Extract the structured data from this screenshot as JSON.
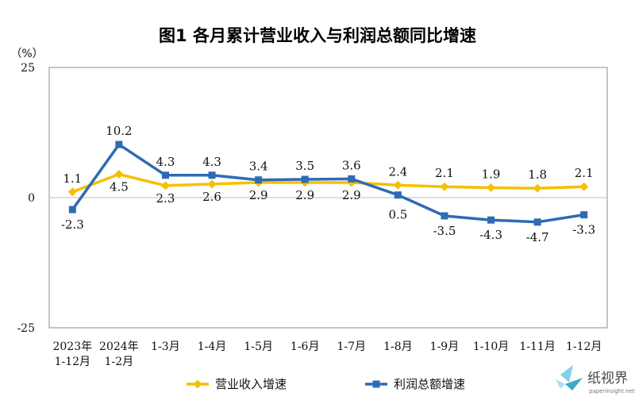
{
  "chart_data": {
    "type": "line",
    "title": "图1  各月累计营业收入与利润总额同比增速",
    "ylabel": "（%）",
    "xlabel": "",
    "ylim": [
      -25,
      25
    ],
    "yticks": [
      "25",
      "0",
      "-25"
    ],
    "grid": false,
    "legend_position": "bottom",
    "categories": [
      [
        "2023年",
        "1-12月"
      ],
      [
        "2024年",
        "1-2月"
      ],
      [
        "1-3月"
      ],
      [
        "1-4月"
      ],
      [
        "1-5月"
      ],
      [
        "1-6月"
      ],
      [
        "1-7月"
      ],
      [
        "1-8月"
      ],
      [
        "1-9月"
      ],
      [
        "1-10月"
      ],
      [
        "1-11月"
      ],
      [
        "1-12月"
      ]
    ],
    "series": [
      {
        "name": "营业收入增速",
        "color": "#F5C000",
        "marker": "diamond",
        "values": [
          1.1,
          4.5,
          2.3,
          2.6,
          2.9,
          2.9,
          2.9,
          2.4,
          2.1,
          1.9,
          1.8,
          2.1
        ],
        "labels": [
          "1.1",
          "4.5",
          "2.3",
          "2.6",
          "2.9",
          "2.9",
          "2.9",
          "2.4",
          "2.1",
          "1.9",
          "1.8",
          "2.1"
        ]
      },
      {
        "name": "利润总额增速",
        "color": "#2E6BB3",
        "marker": "square",
        "values": [
          -2.3,
          10.2,
          4.3,
          4.3,
          3.4,
          3.5,
          3.6,
          0.5,
          -3.5,
          -4.3,
          -4.7,
          -3.3
        ],
        "labels": [
          "-2.3",
          "10.2",
          "4.3",
          "4.3",
          "3.4",
          "3.5",
          "3.6",
          "0.5",
          "-3.5",
          "-4.3",
          "-4.7",
          "-3.3"
        ]
      }
    ]
  },
  "watermark": {
    "logo_text": "纸视界",
    "url_text": "paperinsight.net",
    "icon": "paper-crane-logo-icon"
  }
}
